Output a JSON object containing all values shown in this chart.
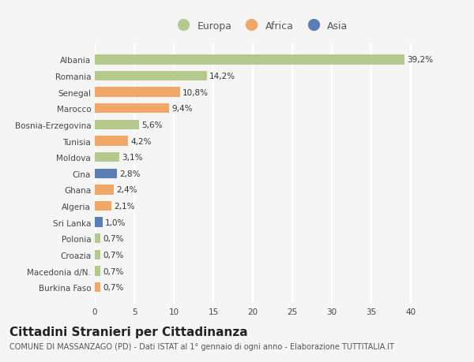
{
  "categories": [
    "Albania",
    "Romania",
    "Senegal",
    "Marocco",
    "Bosnia-Erzegovina",
    "Tunisia",
    "Moldova",
    "Cina",
    "Ghana",
    "Algeria",
    "Sri Lanka",
    "Polonia",
    "Croazia",
    "Macedonia d/N.",
    "Burkina Faso"
  ],
  "values": [
    39.2,
    14.2,
    10.8,
    9.4,
    5.6,
    4.2,
    3.1,
    2.8,
    2.4,
    2.1,
    1.0,
    0.7,
    0.7,
    0.7,
    0.7
  ],
  "labels": [
    "39,2%",
    "14,2%",
    "10,8%",
    "9,4%",
    "5,6%",
    "4,2%",
    "3,1%",
    "2,8%",
    "2,4%",
    "2,1%",
    "1,0%",
    "0,7%",
    "0,7%",
    "0,7%",
    "0,7%"
  ],
  "continents": [
    "Europa",
    "Europa",
    "Africa",
    "Africa",
    "Europa",
    "Africa",
    "Europa",
    "Asia",
    "Africa",
    "Africa",
    "Asia",
    "Europa",
    "Europa",
    "Europa",
    "Africa"
  ],
  "colors": {
    "Europa": "#b5c98e",
    "Africa": "#f0a868",
    "Asia": "#5b7fb5"
  },
  "xlim": [
    0,
    42
  ],
  "xticks": [
    0,
    5,
    10,
    15,
    20,
    25,
    30,
    35,
    40
  ],
  "title": "Cittadini Stranieri per Cittadinanza",
  "subtitle": "COMUNE DI MASSANZAGO (PD) - Dati ISTAT al 1° gennaio di ogni anno - Elaborazione TUTTITALIA.IT",
  "background_color": "#f5f5f5",
  "grid_color": "#ffffff",
  "bar_height": 0.6,
  "label_fontsize": 7.5,
  "tick_fontsize": 7.5,
  "ytick_fontsize": 7.5,
  "title_fontsize": 11,
  "subtitle_fontsize": 7
}
